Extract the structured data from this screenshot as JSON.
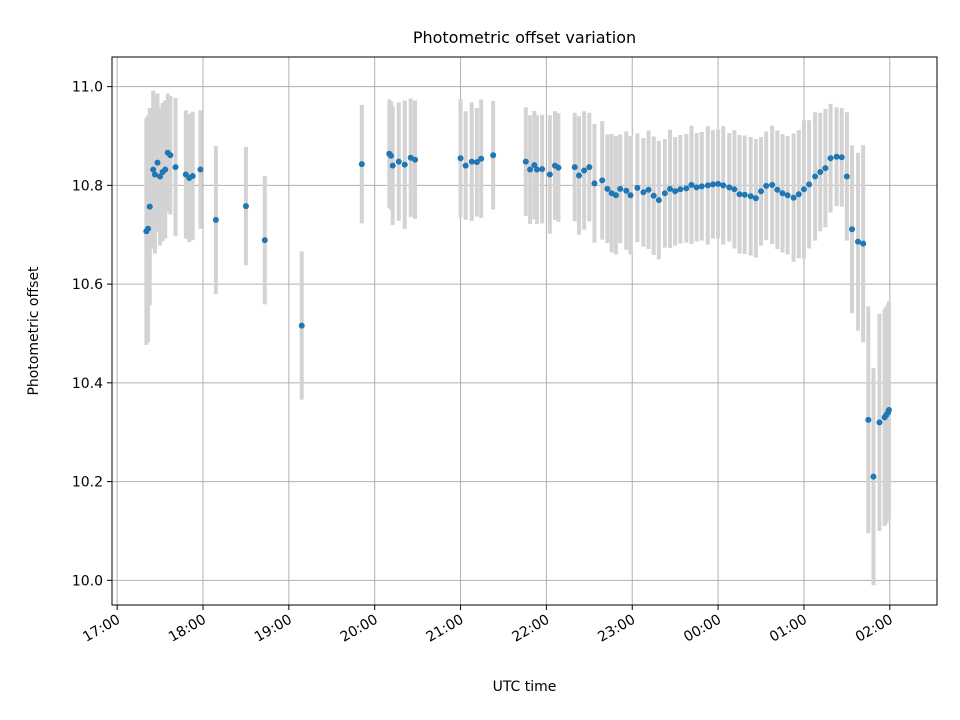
{
  "chart_data": {
    "type": "scatter",
    "title": "Photometric offset variation",
    "xlabel": "UTC time",
    "ylabel": "Photometric offset",
    "x_units": "hours since 17:00 UTC",
    "xlim": [
      -0.06,
      9.55
    ],
    "ylim": [
      9.95,
      11.06
    ],
    "grid": true,
    "x_ticks": [
      {
        "value": 0,
        "label": "17:00"
      },
      {
        "value": 1,
        "label": "18:00"
      },
      {
        "value": 2,
        "label": "19:00"
      },
      {
        "value": 3,
        "label": "20:00"
      },
      {
        "value": 4,
        "label": "21:00"
      },
      {
        "value": 5,
        "label": "22:00"
      },
      {
        "value": 6,
        "label": "23:00"
      },
      {
        "value": 7,
        "label": "00:00"
      },
      {
        "value": 8,
        "label": "01:00"
      },
      {
        "value": 9,
        "label": "02:00"
      }
    ],
    "y_ticks": [
      {
        "value": 10.0,
        "label": "10.0"
      },
      {
        "value": 10.2,
        "label": "10.2"
      },
      {
        "value": 10.4,
        "label": "10.4"
      },
      {
        "value": 10.6,
        "label": "10.6"
      },
      {
        "value": 10.8,
        "label": "10.8"
      },
      {
        "value": 11.0,
        "label": "11.0"
      }
    ],
    "marker_color": "#1f77b4",
    "errorbar_color": "#d3d3d3",
    "series": [
      {
        "x": [
          0.34,
          0.36,
          0.38,
          0.42,
          0.44,
          0.47,
          0.5,
          0.53,
          0.56,
          0.59,
          0.62,
          0.68,
          0.8,
          0.84,
          0.88,
          0.97,
          1.15,
          1.5,
          1.72,
          2.15,
          2.85,
          3.17,
          3.19,
          3.21,
          3.28,
          3.35,
          3.42,
          3.47,
          4.0,
          4.06,
          4.13,
          4.19,
          4.24,
          4.38,
          4.76,
          4.81,
          4.86,
          4.89,
          4.95,
          5.04,
          5.1,
          5.14,
          5.33,
          5.38,
          5.44,
          5.5,
          5.56,
          5.65,
          5.71,
          5.76,
          5.81,
          5.86,
          5.93,
          5.98,
          6.06,
          6.13,
          6.19,
          6.25,
          6.31,
          6.38,
          6.44,
          6.5,
          6.56,
          6.63,
          6.69,
          6.75,
          6.81,
          6.88,
          6.94,
          7.0,
          7.06,
          7.13,
          7.19,
          7.25,
          7.31,
          7.38,
          7.44,
          7.5,
          7.56,
          7.63,
          7.69,
          7.75,
          7.81,
          7.88,
          7.94,
          8.0,
          8.06,
          8.13,
          8.19,
          8.25,
          8.31,
          8.38,
          8.44,
          8.5,
          8.56,
          8.63,
          8.69,
          8.75,
          8.81,
          8.88,
          8.94,
          8.96,
          8.98,
          8.99
        ],
        "y": [
          10.707,
          10.712,
          10.757,
          10.832,
          10.822,
          10.846,
          10.818,
          10.827,
          10.832,
          10.866,
          10.861,
          10.837,
          10.822,
          10.815,
          10.819,
          10.832,
          10.73,
          10.758,
          10.689,
          10.516,
          10.843,
          10.864,
          10.86,
          10.84,
          10.848,
          10.842,
          10.856,
          10.852,
          10.855,
          10.84,
          10.848,
          10.847,
          10.854,
          10.861,
          10.848,
          10.832,
          10.841,
          10.832,
          10.833,
          10.822,
          10.84,
          10.836,
          10.837,
          10.82,
          10.83,
          10.837,
          10.804,
          10.81,
          10.793,
          10.784,
          10.78,
          10.793,
          10.789,
          10.78,
          10.795,
          10.786,
          10.791,
          10.779,
          10.77,
          10.784,
          10.793,
          10.788,
          10.792,
          10.794,
          10.801,
          10.796,
          10.798,
          10.8,
          10.802,
          10.803,
          10.8,
          10.796,
          10.792,
          10.782,
          10.781,
          10.778,
          10.774,
          10.788,
          10.799,
          10.801,
          10.791,
          10.784,
          10.78,
          10.775,
          10.782,
          10.792,
          10.802,
          10.818,
          10.827,
          10.835,
          10.855,
          10.858,
          10.857,
          10.818,
          10.711,
          10.686,
          10.682,
          10.325,
          10.21,
          10.32,
          10.33,
          10.335,
          10.34,
          10.345
        ],
        "yerr": [
          0.23,
          0.23,
          0.2,
          0.16,
          0.16,
          0.14,
          0.14,
          0.14,
          0.14,
          0.12,
          0.12,
          0.14,
          0.13,
          0.13,
          0.13,
          0.12,
          0.15,
          0.12,
          0.13,
          0.15,
          0.12,
          0.11,
          0.11,
          0.12,
          0.12,
          0.13,
          0.12,
          0.12,
          0.12,
          0.11,
          0.12,
          0.11,
          0.12,
          0.11,
          0.11,
          0.11,
          0.11,
          0.11,
          0.11,
          0.12,
          0.11,
          0.11,
          0.11,
          0.12,
          0.12,
          0.11,
          0.12,
          0.12,
          0.11,
          0.12,
          0.12,
          0.11,
          0.12,
          0.12,
          0.11,
          0.11,
          0.12,
          0.12,
          0.12,
          0.11,
          0.12,
          0.11,
          0.11,
          0.11,
          0.12,
          0.11,
          0.11,
          0.12,
          0.11,
          0.11,
          0.12,
          0.11,
          0.12,
          0.12,
          0.12,
          0.12,
          0.12,
          0.11,
          0.11,
          0.12,
          0.12,
          0.12,
          0.12,
          0.13,
          0.13,
          0.14,
          0.13,
          0.13,
          0.12,
          0.12,
          0.11,
          0.1,
          0.1,
          0.13,
          0.17,
          0.18,
          0.2,
          0.23,
          0.22,
          0.22,
          0.22,
          0.22,
          0.22,
          0.22
        ]
      }
    ]
  }
}
